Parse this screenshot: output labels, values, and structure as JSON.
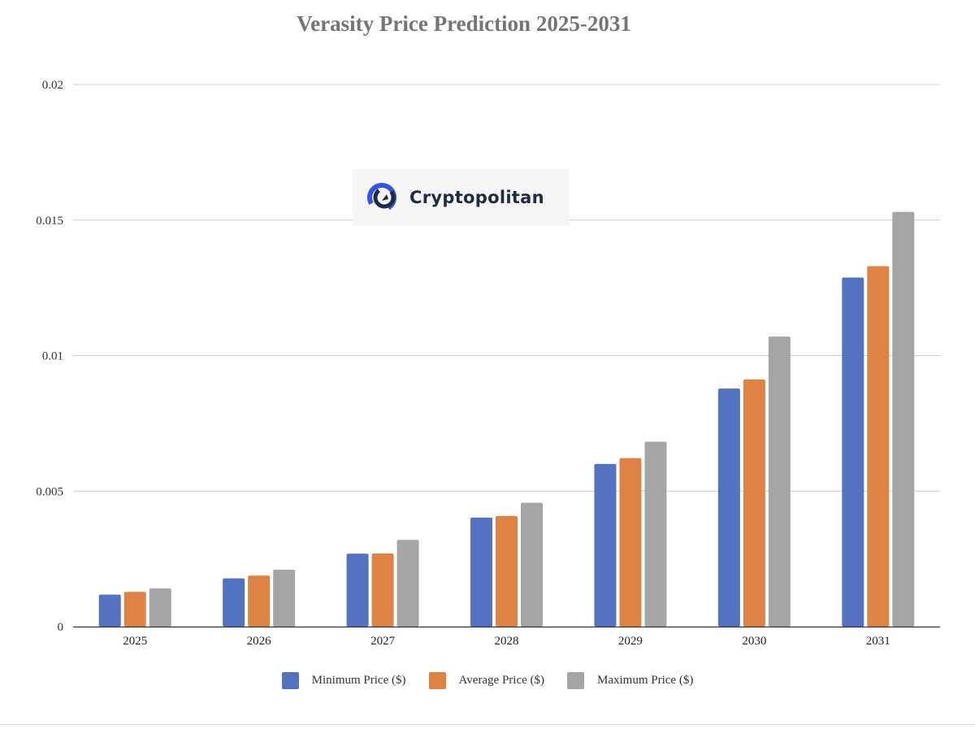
{
  "chart_data": {
    "type": "bar",
    "title": "Verasity Price Prediction 2025-2031",
    "categories": [
      "2025",
      "2026",
      "2027",
      "2028",
      "2029",
      "2030",
      "2031"
    ],
    "series": [
      {
        "name": "Minimum Price ($)",
        "color": "#5372c1",
        "values": [
          0.00118,
          0.00178,
          0.00269,
          0.00402,
          0.006,
          0.00878,
          0.01288
        ]
      },
      {
        "name": "Average Price ($)",
        "color": "#df8344",
        "values": [
          0.00128,
          0.00188,
          0.0027,
          0.00408,
          0.00622,
          0.00912,
          0.0133
        ]
      },
      {
        "name": "Maximum Price ($)",
        "color": "#a5a5a5",
        "values": [
          0.00141,
          0.0021,
          0.0032,
          0.00457,
          0.00682,
          0.0107,
          0.0153
        ]
      }
    ],
    "yticks": [
      "0",
      "0.005",
      "0.01",
      "0.015",
      "0.02"
    ],
    "ylim": [
      0,
      0.02
    ],
    "grid": true,
    "legend_position": "bottom"
  },
  "watermark": {
    "text": "Cryptopolitan",
    "icon": "cryptopolitan-logo-icon"
  }
}
